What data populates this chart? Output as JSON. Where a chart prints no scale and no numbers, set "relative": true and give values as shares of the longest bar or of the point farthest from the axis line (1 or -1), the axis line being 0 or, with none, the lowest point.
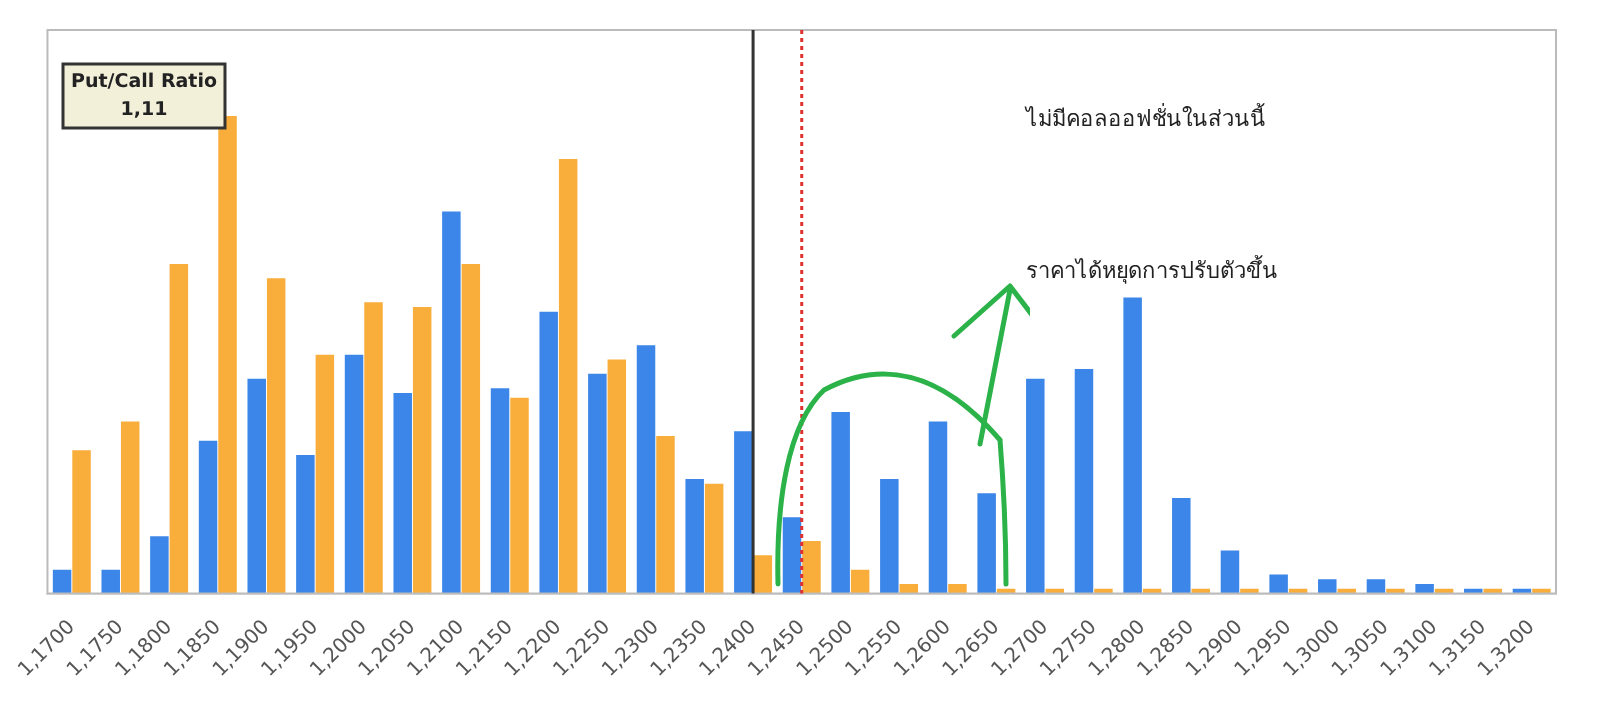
{
  "chart_data": {
    "type": "bar",
    "relative": true,
    "categories": [
      "1,1700",
      "1,1750",
      "1,1800",
      "1,1850",
      "1,1900",
      "1,1950",
      "1,2000",
      "1,2050",
      "1,2100",
      "1,2150",
      "1,2200",
      "1,2250",
      "1,2300",
      "1,2350",
      "1,2400",
      "1,2450",
      "1,2500",
      "1,2550",
      "1,2600",
      "1,2650",
      "1,2700",
      "1,2750",
      "1,2800",
      "1,2850",
      "1,2900",
      "1,2950",
      "1,3000",
      "1,3050",
      "1,3100",
      "1,3150",
      "1,3200"
    ],
    "series": [
      {
        "color": "#3b86e8",
        "values": [
          0.05,
          0.05,
          0.12,
          0.32,
          0.45,
          0.29,
          0.5,
          0.42,
          0.8,
          0.43,
          0.59,
          0.46,
          0.52,
          0.24,
          0.34,
          0.16,
          0.38,
          0.24,
          0.36,
          0.21,
          0.45,
          0.47,
          0.62,
          0.2,
          0.09,
          0.04,
          0.03,
          0.03,
          0.02,
          0.01,
          0.01
        ]
      },
      {
        "color": "#f9ae3c",
        "values": [
          0.3,
          0.36,
          0.69,
          1,
          0.66,
          0.5,
          0.61,
          0.6,
          0.69,
          0.41,
          0.91,
          0.49,
          0.33,
          0.23,
          0.08,
          0.11,
          0.05,
          0.02,
          0.02,
          0.01,
          0.01,
          0.01,
          0.01,
          0.01,
          0.01,
          0.01,
          0.01,
          0.01,
          0.01,
          0.01,
          0.01
        ]
      }
    ],
    "ref_lines": [
      {
        "axis": "x",
        "value": "1,2400",
        "color": "#333333",
        "line_style": "solid"
      },
      {
        "axis": "x",
        "value": "1,2450",
        "color": "#e03030",
        "line_style": "dotted"
      }
    ],
    "annotations": [
      "Put/Call Ratio\n1,11",
      "ไม่มีคอลออฟชั่นในส่วนนี้",
      "ราคาได้หยุดการปรับตัวขึ้น"
    ]
  }
}
